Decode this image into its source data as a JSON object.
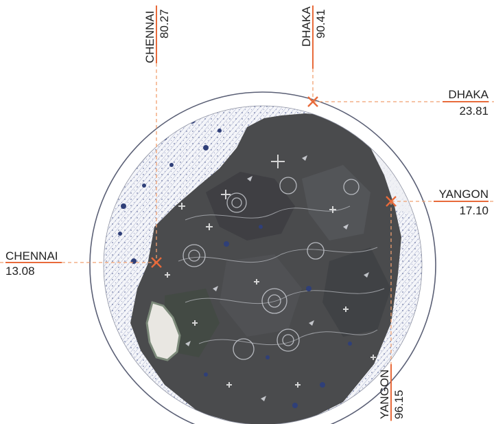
{
  "colors": {
    "accent": "#e86a3a",
    "leader": "#f0a070",
    "ring": "#5a5f75",
    "sea": "#2f3f78",
    "land": "#4a4b4d"
  },
  "markers": [
    {
      "id": "chennai",
      "name": "CHENNAI",
      "lat": "13.08",
      "lon": "80.27"
    },
    {
      "id": "dhaka",
      "name": "DHAKA",
      "lat": "23.81",
      "lon": "90.41"
    },
    {
      "id": "yangon",
      "name": "YANGON",
      "lat": "17.10",
      "lon": "96.15"
    }
  ],
  "icons": {
    "city": "cross-marker-icon",
    "flow": "arrow-icon",
    "point": "plus-icon"
  }
}
